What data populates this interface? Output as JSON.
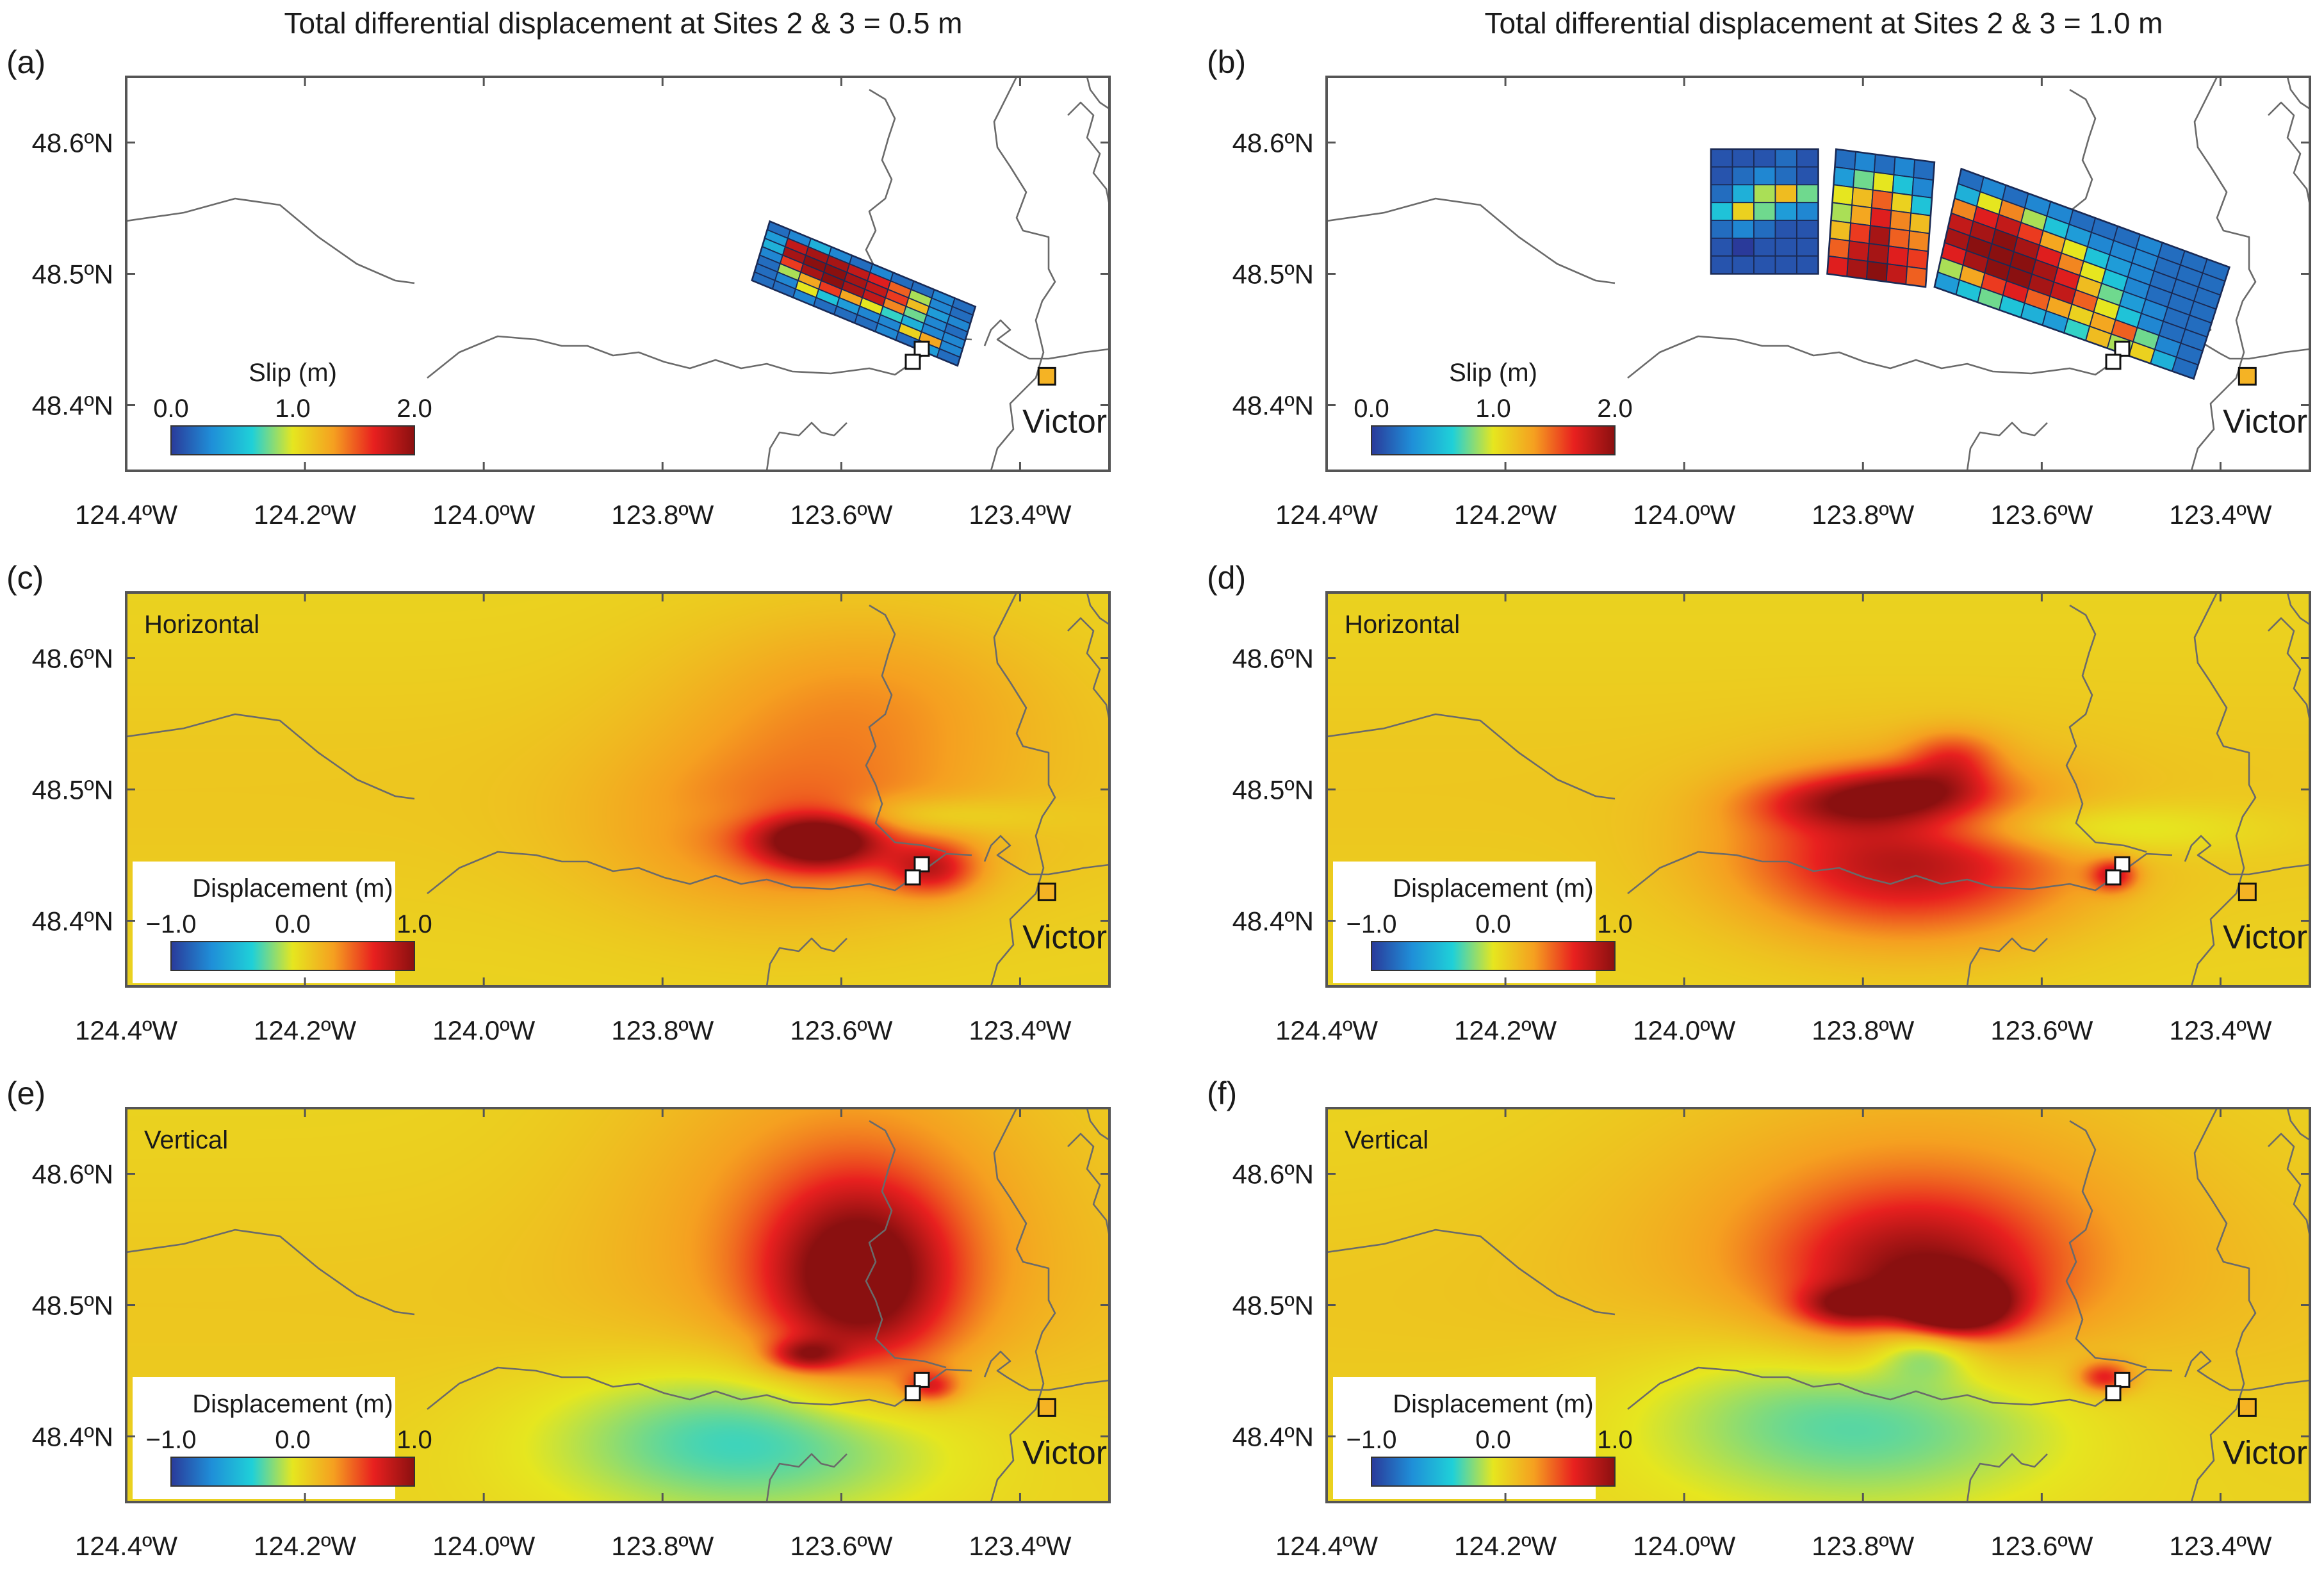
{
  "chart_data": {
    "type": "heatmap",
    "column_titles": [
      "Total differential displacement at Sites 2 & 3 = 0.5 m",
      "Total differential displacement at Sites 2 & 3 = 1.0 m"
    ],
    "axes": {
      "xlim": [
        -124.4,
        -123.3
      ],
      "ylim": [
        48.35,
        48.65
      ],
      "x_ticks": [
        {
          "value": -124.4,
          "label": "124.4ºW"
        },
        {
          "value": -124.2,
          "label": "124.2ºW"
        },
        {
          "value": -124.0,
          "label": "124.0ºW"
        },
        {
          "value": -123.8,
          "label": "123.8ºW"
        },
        {
          "value": -123.6,
          "label": "123.6ºW"
        },
        {
          "value": -123.4,
          "label": "123.4ºW"
        }
      ],
      "y_ticks": [
        {
          "value": 48.6,
          "label": "48.6ºN"
        },
        {
          "value": 48.5,
          "label": "48.5ºN"
        },
        {
          "value": 48.4,
          "label": "48.4ºN"
        }
      ]
    },
    "colorbars": {
      "slip": {
        "title": "Slip (m)",
        "ticks": [
          "0.0",
          "1.0",
          "2.0"
        ],
        "range": [
          0,
          2
        ]
      },
      "displacement": {
        "title": "Displacement (m)",
        "ticks": [
          "−1.0",
          "0.0",
          "1.0"
        ],
        "range": [
          -1,
          1
        ]
      }
    },
    "colormap": [
      "#2a3a9a",
      "#1f8fd8",
      "#1fd0d8",
      "#e6e61f",
      "#f5a020",
      "#e8201f",
      "#8a1010"
    ],
    "city": {
      "name": "Victoria",
      "lon": -123.37,
      "lat": 48.422,
      "color": "#f5b324"
    },
    "sites": [
      {
        "lon": -123.51,
        "lat": 48.443,
        "color": "#ffffff"
      },
      {
        "lon": -123.52,
        "lat": 48.433,
        "color": "#ffffff"
      }
    ],
    "panels": [
      {
        "id": "a",
        "label": "(a)",
        "kind": "slip",
        "column": 0,
        "faults": [
          {
            "corners": [
              [
                -123.7,
                48.495
              ],
              [
                -123.47,
                48.43
              ],
              [
                -123.45,
                48.475
              ],
              [
                -123.68,
                48.54
              ]
            ],
            "rows": [
              [
                0.2,
                0.3,
                0.5,
                0.3,
                0.2,
                0.3,
                0.2,
                0.2,
                0.3,
                0.2
              ],
              [
                0.4,
                1.8,
                1.9,
                1.9,
                1.8,
                1.7,
                1.5,
                0.9,
                0.3,
                0.2
              ],
              [
                0.5,
                1.9,
                2.0,
                2.0,
                1.9,
                1.8,
                1.6,
                1.2,
                0.4,
                0.3
              ],
              [
                0.3,
                1.6,
                1.9,
                2.0,
                1.9,
                1.8,
                1.4,
                0.8,
                0.3,
                0.2
              ],
              [
                0.2,
                0.9,
                1.3,
                1.6,
                1.3,
                1.0,
                0.7,
                0.5,
                0.3,
                0.3
              ],
              [
                0.2,
                0.3,
                1.0,
                0.6,
                0.4,
                0.3,
                0.3,
                1.1,
                1.3,
                0.3
              ],
              [
                0.2,
                0.2,
                0.3,
                0.2,
                0.2,
                0.2,
                0.3,
                0.2,
                0.4,
                0.2
              ]
            ]
          }
        ]
      },
      {
        "id": "b",
        "label": "(b)",
        "kind": "slip",
        "column": 1,
        "faults": [
          {
            "corners": [
              [
                -123.97,
                48.5
              ],
              [
                -123.85,
                48.5
              ],
              [
                -123.85,
                48.595
              ],
              [
                -123.97,
                48.595
              ]
            ],
            "rows": [
              [
                0.1,
                0.1,
                0.1,
                0.2,
                0.1
              ],
              [
                0.1,
                0.2,
                0.3,
                0.2,
                0.1
              ],
              [
                0.2,
                0.5,
                0.9,
                1.2,
                0.8
              ],
              [
                0.6,
                1.1,
                0.8,
                0.4,
                0.3
              ],
              [
                0.2,
                0.3,
                0.2,
                0.1,
                0.1
              ],
              [
                0.1,
                0.0,
                0.1,
                0.1,
                0.1
              ],
              [
                0.1,
                0.1,
                0.1,
                0.1,
                0.1
              ]
            ]
          },
          {
            "corners": [
              [
                -123.84,
                48.5
              ],
              [
                -123.73,
                48.49
              ],
              [
                -123.72,
                48.585
              ],
              [
                -123.83,
                48.595
              ]
            ],
            "rows": [
              [
                0.2,
                0.3,
                0.2,
                0.3,
                0.2
              ],
              [
                0.4,
                0.8,
                1.0,
                0.6,
                0.3
              ],
              [
                1.0,
                1.2,
                1.5,
                1.1,
                0.6
              ],
              [
                0.9,
                1.3,
                1.7,
                1.4,
                1.2
              ],
              [
                1.2,
                1.6,
                1.9,
                1.5,
                1.4
              ],
              [
                1.5,
                1.8,
                1.9,
                1.7,
                1.6
              ],
              [
                1.7,
                1.9,
                2.0,
                1.8,
                1.5
              ]
            ]
          },
          {
            "corners": [
              [
                -123.72,
                48.49
              ],
              [
                -123.43,
                48.42
              ],
              [
                -123.39,
                48.505
              ],
              [
                -123.69,
                48.58
              ]
            ],
            "rows": [
              [
                0.2,
                0.3,
                0.2,
                0.3,
                0.3,
                0.2,
                0.2,
                0.2,
                0.3,
                0.2,
                0.2,
                0.2
              ],
              [
                0.5,
                1.0,
                1.4,
                0.9,
                0.6,
                0.4,
                0.3,
                0.3,
                0.3,
                0.2,
                0.2,
                0.2
              ],
              [
                1.4,
                1.7,
                1.8,
                1.6,
                1.3,
                1.0,
                0.6,
                0.4,
                0.3,
                0.2,
                0.2,
                0.2
              ],
              [
                1.8,
                1.9,
                2.0,
                1.9,
                1.7,
                1.4,
                1.0,
                0.6,
                0.3,
                0.2,
                0.2,
                0.2
              ],
              [
                1.9,
                2.0,
                2.0,
                2.0,
                1.9,
                1.7,
                1.2,
                0.8,
                0.4,
                0.3,
                0.2,
                0.2
              ],
              [
                1.7,
                1.9,
                2.0,
                2.0,
                1.9,
                1.8,
                1.5,
                1.0,
                0.6,
                0.3,
                0.2,
                0.2
              ],
              [
                0.9,
                1.3,
                1.6,
                1.7,
                1.5,
                1.3,
                1.1,
                1.3,
                1.5,
                0.8,
                0.3,
                0.2
              ],
              [
                0.4,
                0.6,
                0.8,
                0.6,
                0.5,
                0.4,
                0.7,
                1.2,
                0.9,
                1.1,
                0.5,
                0.2
              ]
            ]
          }
        ]
      },
      {
        "id": "c",
        "label": "(c)",
        "kind": "displacement",
        "component": "Horizontal",
        "column": 0,
        "field_sources": [
          {
            "lon": -123.625,
            "lat": 48.462,
            "rlon": 0.07,
            "rlat": 0.022,
            "amp": 0.95
          },
          {
            "lon": -123.66,
            "lat": 48.47,
            "rlon": 0.2,
            "rlat": 0.07,
            "amp": 0.3
          },
          {
            "lon": -123.5,
            "lat": 48.44,
            "rlon": 0.05,
            "rlat": 0.02,
            "amp": 0.55
          },
          {
            "lon": -123.58,
            "lat": 48.57,
            "rlon": 0.2,
            "rlat": 0.07,
            "amp": 0.22
          },
          {
            "lon": -123.55,
            "lat": 48.48,
            "rlon": 0.15,
            "rlat": 0.015,
            "amp": -0.25
          }
        ]
      },
      {
        "id": "d",
        "label": "(d)",
        "kind": "displacement",
        "component": "Horizontal",
        "column": 1,
        "field_sources": [
          {
            "lon": -123.75,
            "lat": 48.45,
            "rlon": 0.18,
            "rlat": 0.06,
            "amp": 0.75
          },
          {
            "lon": -123.82,
            "lat": 48.49,
            "rlon": 0.1,
            "rlat": 0.02,
            "amp": 0.45
          },
          {
            "lon": -123.74,
            "lat": 48.5,
            "rlon": 0.08,
            "rlat": 0.018,
            "amp": 0.4
          },
          {
            "lon": -123.7,
            "lat": 48.525,
            "rlon": 0.05,
            "rlat": 0.02,
            "amp": 0.35
          },
          {
            "lon": -123.6,
            "lat": 48.47,
            "rlon": 0.2,
            "rlat": 0.02,
            "amp": -0.3
          },
          {
            "lon": -123.52,
            "lat": 48.435,
            "rlon": 0.025,
            "rlat": 0.012,
            "amp": 0.55
          }
        ]
      },
      {
        "id": "e",
        "label": "(e)",
        "kind": "displacement",
        "component": "Vertical",
        "column": 0,
        "field_sources": [
          {
            "lon": -123.58,
            "lat": 48.52,
            "rlon": 0.1,
            "rlat": 0.07,
            "amp": 0.85
          },
          {
            "lon": -123.6,
            "lat": 48.57,
            "rlon": 0.24,
            "rlat": 0.14,
            "amp": 0.3
          },
          {
            "lon": -123.64,
            "lat": 48.462,
            "rlon": 0.04,
            "rlat": 0.012,
            "amp": 0.55
          },
          {
            "lon": -123.7,
            "lat": 48.4,
            "rlon": 0.22,
            "rlat": 0.06,
            "amp": -0.45
          },
          {
            "lon": -123.5,
            "lat": 48.438,
            "rlon": 0.03,
            "rlat": 0.012,
            "amp": 0.5
          }
        ]
      },
      {
        "id": "f",
        "label": "(f)",
        "kind": "displacement",
        "component": "Vertical",
        "column": 1,
        "field_sources": [
          {
            "lon": -123.7,
            "lat": 48.5,
            "rlon": 0.06,
            "rlat": 0.022,
            "amp": 1.2
          },
          {
            "lon": -123.74,
            "lat": 48.52,
            "rlon": 0.14,
            "rlat": 0.06,
            "amp": 0.6
          },
          {
            "lon": -123.74,
            "lat": 48.55,
            "rlon": 0.3,
            "rlat": 0.12,
            "amp": 0.3
          },
          {
            "lon": -123.82,
            "lat": 48.5,
            "rlon": 0.05,
            "rlat": 0.015,
            "amp": 0.5
          },
          {
            "lon": -123.8,
            "lat": 48.42,
            "rlon": 0.24,
            "rlat": 0.07,
            "amp": -0.45
          },
          {
            "lon": -123.73,
            "lat": 48.47,
            "rlon": 0.06,
            "rlat": 0.025,
            "amp": -0.45
          },
          {
            "lon": -123.53,
            "lat": 48.445,
            "rlon": 0.03,
            "rlat": 0.012,
            "amp": 0.55
          }
        ]
      }
    ]
  }
}
